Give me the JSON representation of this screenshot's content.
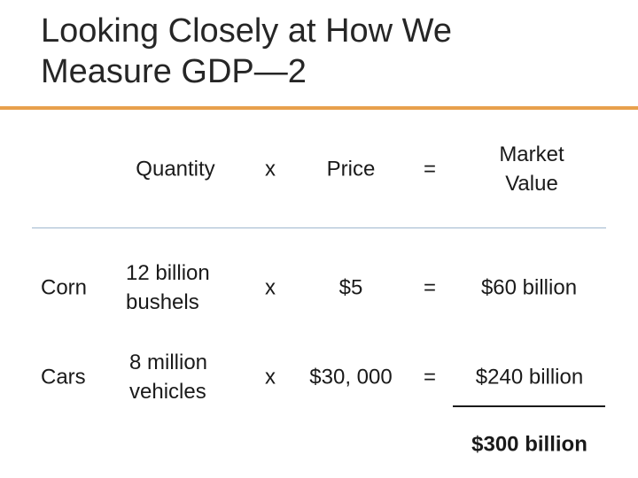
{
  "slide": {
    "title_line1": "Looking Closely at How We",
    "title_line2": "Measure GDP—2"
  },
  "header": {
    "quantity": "Quantity",
    "times": "x",
    "price": "Price",
    "equals": "=",
    "market_value_line1": "Market",
    "market_value_line2": "Value"
  },
  "rows": [
    {
      "label": "Corn",
      "quantity_line1": "12 billion",
      "quantity_line2": "bushels",
      "times": "x",
      "price": "$5",
      "equals": "=",
      "market_value": "$60 billion"
    },
    {
      "label": "Cars",
      "quantity_line1": "8 million",
      "quantity_line2": "vehicles",
      "times": "x",
      "price": "$30, 000",
      "equals": "=",
      "market_value": "$240 billion"
    }
  ],
  "total": "$300 billion",
  "colors": {
    "accent_rule": "#E8A04C",
    "header_rule": "#9FB7CF"
  }
}
